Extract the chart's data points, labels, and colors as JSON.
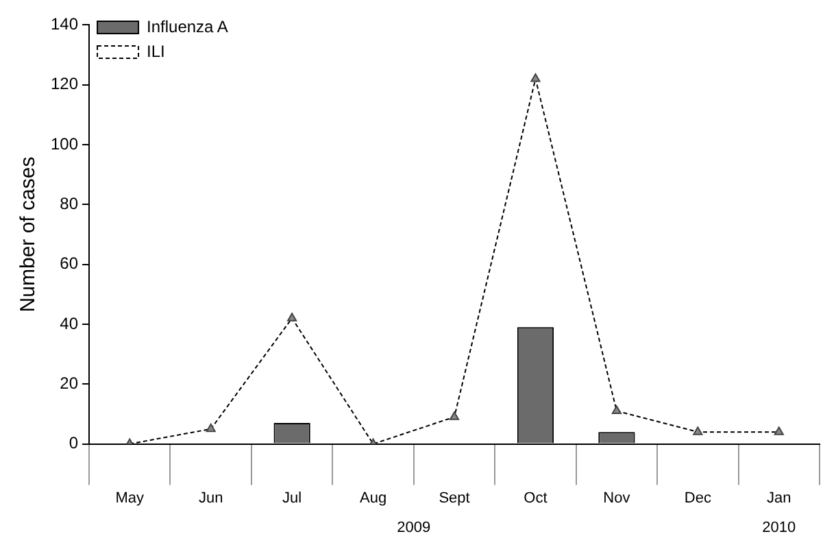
{
  "chart_data": {
    "type": "bar",
    "ylabel": "Number of cases",
    "categories": [
      "May",
      "Jun",
      "Jul",
      "Aug",
      "Sept",
      "Oct",
      "Nov",
      "Dec",
      "Jan"
    ],
    "series": [
      {
        "name": "Influenza A",
        "color": "#6b6b6b",
        "values": [
          0,
          0,
          7,
          0,
          0,
          39,
          4,
          0,
          0
        ]
      },
      {
        "name": "ILI",
        "type": "line",
        "color": "#000000",
        "line_style": "dashed",
        "marker": "triangle",
        "values": [
          0,
          5,
          42,
          0,
          9,
          122,
          11,
          4,
          4
        ]
      }
    ],
    "ylim": [
      0,
      140
    ],
    "yticks": [
      0,
      20,
      40,
      60,
      80,
      100,
      120,
      140
    ],
    "grid": false,
    "legend": "top left",
    "annotations": [
      "2009",
      "2010"
    ]
  }
}
